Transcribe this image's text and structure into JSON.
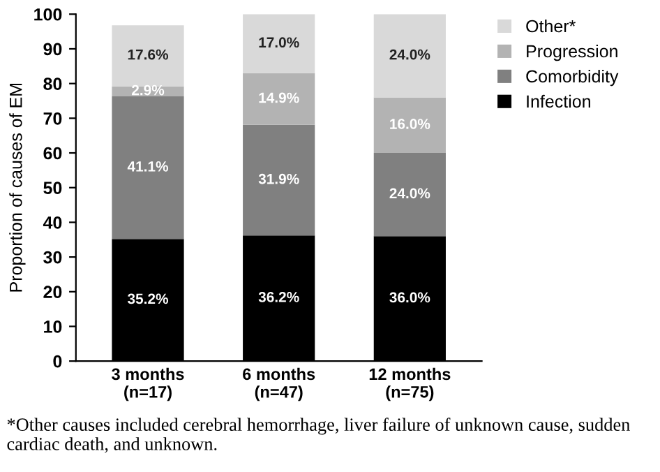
{
  "chart_data": {
    "type": "bar",
    "stacked": true,
    "ylabel": "Proportion of causes of EM",
    "categories": [
      "3 months\n(n=17)",
      "6 months\n(n=47)",
      "12 months\n(n=75)"
    ],
    "series": [
      {
        "name": "Infection",
        "color": "#000000",
        "values": [
          35.2,
          36.2,
          36.0
        ],
        "value_labels": [
          "35.2%",
          "36.2%",
          "36.0%"
        ]
      },
      {
        "name": "Comorbidity",
        "color": "#808080",
        "values": [
          41.1,
          31.9,
          24.0
        ],
        "value_labels": [
          "41.1%",
          "31.9%",
          "24.0%"
        ]
      },
      {
        "name": "Progression",
        "color": "#b3b3b3",
        "values": [
          2.9,
          14.9,
          16.0
        ],
        "value_labels": [
          "2.9%",
          "14.9%",
          "16.0%"
        ]
      },
      {
        "name": "Other*",
        "color": "#d9d9d9",
        "values": [
          17.6,
          17.0,
          24.0
        ],
        "value_labels": [
          "17.6%",
          "17.0%",
          "24.0%"
        ]
      }
    ],
    "ylim": [
      0,
      100
    ],
    "yticks": [
      0,
      10,
      20,
      30,
      40,
      50,
      60,
      70,
      80,
      90,
      100
    ],
    "grid": false,
    "legend": "top right",
    "annotations": [
      "*Other causes included cerebral hemorrhage, liver failure of unknown cause, sudden cardiac death, and unknown."
    ]
  }
}
